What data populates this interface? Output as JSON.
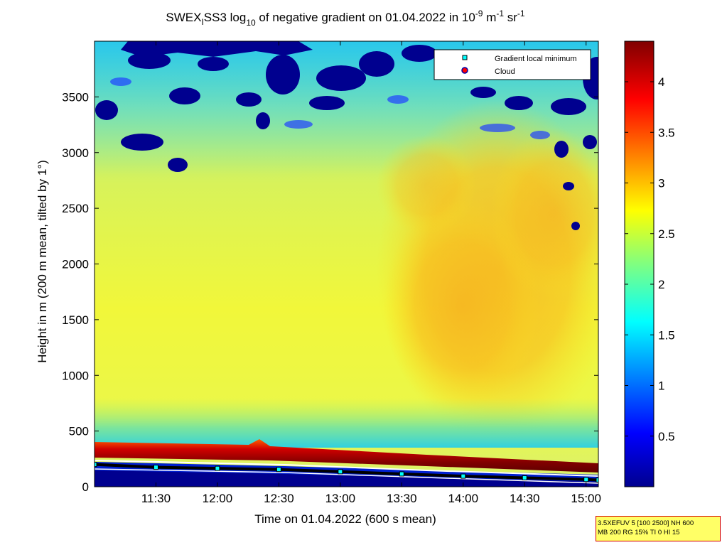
{
  "chart_data": {
    "type": "heatmap",
    "title": "SWEX",
    "title_sub": "I",
    "title_mid": "SS3 log",
    "title_log_sub": "10",
    "title_rest": " of negative gradient on 01.04.2022 in 10",
    "title_exp1": "-9",
    "title_unit_m": " m",
    "title_exp2": "-1",
    "title_unit_sr": " sr",
    "title_exp3": "-1",
    "xlabel": "Time on 01.04.2022 (600 s mean)",
    "ylabel": "Height in m (200 m mean, tilted by 1°)",
    "x_range_hours": [
      11.0,
      15.1
    ],
    "x_ticks": [
      {
        "value": 11.5,
        "label": "11:30"
      },
      {
        "value": 12.0,
        "label": "12:00"
      },
      {
        "value": 12.5,
        "label": "12:30"
      },
      {
        "value": 13.0,
        "label": "13:00"
      },
      {
        "value": 13.5,
        "label": "13:30"
      },
      {
        "value": 14.0,
        "label": "14:00"
      },
      {
        "value": 14.5,
        "label": "14:30"
      },
      {
        "value": 15.0,
        "label": "15:00"
      }
    ],
    "y_range": [
      0,
      4000
    ],
    "y_ticks": [
      0,
      500,
      1000,
      1500,
      2000,
      2500,
      3000,
      3500
    ],
    "colorbar": {
      "range": [
        0,
        4.4
      ],
      "ticks": [
        0.5,
        1,
        1.5,
        2,
        2.5,
        3,
        3.5,
        4
      ],
      "labels": [
        "0.5",
        "1",
        "1.5",
        "2",
        "2.5",
        "3",
        "3.5",
        "4"
      ],
      "colormap": "jet"
    },
    "legend": {
      "position": "top-right",
      "entries": [
        {
          "label": "Gradient local minimum",
          "color": "#00ffff",
          "marker": "square"
        },
        {
          "label": "Cloud",
          "color": "#ff0000",
          "marker": "circle"
        }
      ]
    },
    "gradient_minimum_line": {
      "times": [
        11.0,
        11.5,
        12.0,
        12.5,
        13.0,
        13.5,
        14.0,
        14.5,
        15.0,
        15.1
      ],
      "heights": [
        200,
        175,
        165,
        155,
        135,
        115,
        95,
        80,
        65,
        60
      ]
    },
    "description": "jet heatmap: boundary layer top ~300-350 m (dark red), aerosol layer values ~2.3-2.6 up to 3000 m, higher values ~2.8-3.0 after 13:40 between 800-3000 m, low values (~0) clouds/noise patches above 2800 m"
  },
  "info_box": {
    "line1": "3.5XEFUV 5 [100 2500] NH 600",
    "line2": "MB 200 RG 15% TI 0 HI 15"
  }
}
